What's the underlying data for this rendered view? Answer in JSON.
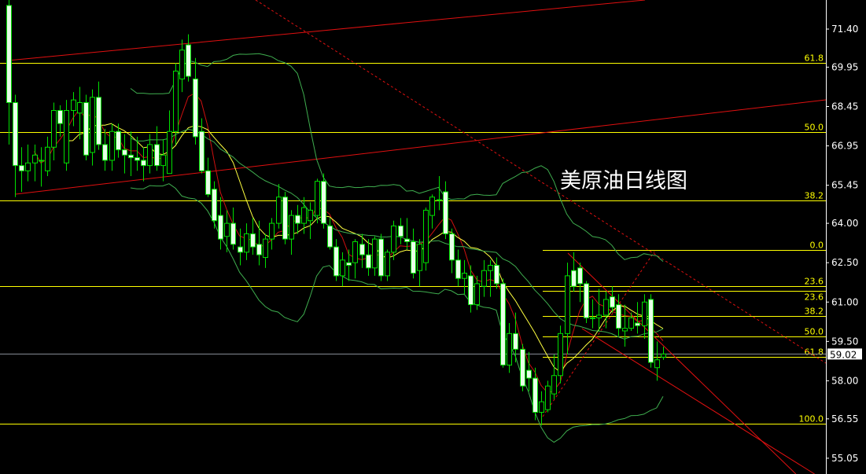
{
  "title": "美原油日线图",
  "chart_data": {
    "type": "candlestick",
    "title": "美原油日线图",
    "ylim": [
      54.6,
      72.5
    ],
    "y_ticks": [
      "71.40",
      "69.95",
      "68.45",
      "66.95",
      "65.45",
      "64.00",
      "62.50",
      "61.00",
      "59.50",
      "58.00",
      "56.55",
      "55.05"
    ],
    "current_price": "59.02",
    "candles_ohlc": [
      [
        72.3,
        72.6,
        67.0,
        68.6
      ],
      [
        68.6,
        68.9,
        65.0,
        66.2
      ],
      [
        66.2,
        66.9,
        65.2,
        66.0
      ],
      [
        66.0,
        67.0,
        65.6,
        66.3
      ],
      [
        66.3,
        67.0,
        65.6,
        66.6
      ],
      [
        66.4,
        66.9,
        65.4,
        66.4
      ],
      [
        66.0,
        67.3,
        65.8,
        66.9
      ],
      [
        66.9,
        68.6,
        66.4,
        68.3
      ],
      [
        68.3,
        68.5,
        67.3,
        67.8
      ],
      [
        66.3,
        68.7,
        66.0,
        68.3
      ],
      [
        68.3,
        69.0,
        67.7,
        68.7
      ],
      [
        68.2,
        69.2,
        67.2,
        68.6
      ],
      [
        68.6,
        68.9,
        66.4,
        66.6
      ],
      [
        66.7,
        69.1,
        66.2,
        68.8
      ],
      [
        68.8,
        69.4,
        66.8,
        67.0
      ],
      [
        67.0,
        67.6,
        66.0,
        66.4
      ],
      [
        66.4,
        67.8,
        66.0,
        67.5
      ],
      [
        67.5,
        67.8,
        66.5,
        66.8
      ],
      [
        66.8,
        67.4,
        65.9,
        66.6
      ],
      [
        66.6,
        67.5,
        65.8,
        66.5
      ],
      [
        66.5,
        67.3,
        66.0,
        66.4
      ],
      [
        66.4,
        66.9,
        65.6,
        66.2
      ],
      [
        66.2,
        67.4,
        65.9,
        67.0
      ],
      [
        67.0,
        67.7,
        66.0,
        66.2
      ],
      [
        66.2,
        67.2,
        65.6,
        66.6
      ],
      [
        65.9,
        68.3,
        65.9,
        67.5
      ],
      [
        67.5,
        70.1,
        67.0,
        69.8
      ],
      [
        69.5,
        71.0,
        69.0,
        70.6
      ],
      [
        70.8,
        71.2,
        69.4,
        69.6
      ],
      [
        69.5,
        70.3,
        67.0,
        67.3
      ],
      [
        67.5,
        68.0,
        65.9,
        66.0
      ],
      [
        66.0,
        66.5,
        65.0,
        65.1
      ],
      [
        65.3,
        65.6,
        63.8,
        64.1
      ],
      [
        64.3,
        65.0,
        63.0,
        63.4
      ],
      [
        63.5,
        64.5,
        62.9,
        64.0
      ],
      [
        64.0,
        64.6,
        63.0,
        63.2
      ],
      [
        63.1,
        63.8,
        62.4,
        62.9
      ],
      [
        62.9,
        64.0,
        62.6,
        63.6
      ],
      [
        63.6,
        64.2,
        62.8,
        63.1
      ],
      [
        63.2,
        64.1,
        62.4,
        62.8
      ],
      [
        62.7,
        63.6,
        62.3,
        63.4
      ],
      [
        63.4,
        64.2,
        63.0,
        64.0
      ],
      [
        64.0,
        65.5,
        63.8,
        65.0
      ],
      [
        65.0,
        65.2,
        63.2,
        63.4
      ],
      [
        63.4,
        64.5,
        62.8,
        64.3
      ],
      [
        64.3,
        64.7,
        63.6,
        64.0
      ],
      [
        64.0,
        65.0,
        63.6,
        64.6
      ],
      [
        64.1,
        64.8,
        63.4,
        64.5
      ],
      [
        64.3,
        65.7,
        64.0,
        65.6
      ],
      [
        65.6,
        65.9,
        63.8,
        64.0
      ],
      [
        63.9,
        64.2,
        63.0,
        63.1
      ],
      [
        63.1,
        63.4,
        61.8,
        62.0
      ],
      [
        62.0,
        62.9,
        61.6,
        62.6
      ],
      [
        62.5,
        63.0,
        61.8,
        62.4
      ],
      [
        62.5,
        63.4,
        61.9,
        63.3
      ],
      [
        63.2,
        63.6,
        62.3,
        62.8
      ],
      [
        62.8,
        63.4,
        62.0,
        62.3
      ],
      [
        62.3,
        63.5,
        62.0,
        63.4
      ],
      [
        63.4,
        63.6,
        61.8,
        62.0
      ],
      [
        62.0,
        63.0,
        61.8,
        62.9
      ],
      [
        62.9,
        64.1,
        62.6,
        63.9
      ],
      [
        63.9,
        64.2,
        63.2,
        63.5
      ],
      [
        63.4,
        64.2,
        63.0,
        63.3
      ],
      [
        63.3,
        63.8,
        61.9,
        62.1
      ],
      [
        62.2,
        63.4,
        61.6,
        63.2
      ],
      [
        62.5,
        64.6,
        62.2,
        64.5
      ],
      [
        64.3,
        65.1,
        63.8,
        65.0
      ],
      [
        64.9,
        65.8,
        64.5,
        64.9
      ],
      [
        65.2,
        65.6,
        63.4,
        63.6
      ],
      [
        63.6,
        63.8,
        62.1,
        62.6
      ],
      [
        62.6,
        63.0,
        61.6,
        61.9
      ],
      [
        61.9,
        62.6,
        61.3,
        62.1
      ],
      [
        62.0,
        62.4,
        60.6,
        60.9
      ],
      [
        60.9,
        62.0,
        60.7,
        61.7
      ],
      [
        61.6,
        62.6,
        61.2,
        62.2
      ],
      [
        62.2,
        62.6,
        61.2,
        62.4
      ],
      [
        62.4,
        62.7,
        61.5,
        61.7
      ],
      [
        61.7,
        61.9,
        58.5,
        58.6
      ],
      [
        58.6,
        60.2,
        58.3,
        59.8
      ],
      [
        59.8,
        60.6,
        58.7,
        59.2
      ],
      [
        59.2,
        59.4,
        57.6,
        57.8
      ],
      [
        58.4,
        59.1,
        57.6,
        58.1
      ],
      [
        58.1,
        58.5,
        56.5,
        56.8
      ],
      [
        56.8,
        57.6,
        56.3,
        57.2
      ],
      [
        56.9,
        58.0,
        56.8,
        57.8
      ],
      [
        57.5,
        59.0,
        57.3,
        58.2
      ],
      [
        58.2,
        60.1,
        57.9,
        59.8
      ],
      [
        59.8,
        62.5,
        59.0,
        62.0
      ],
      [
        62.2,
        62.9,
        61.4,
        61.6
      ],
      [
        62.3,
        62.5,
        61.0,
        61.7
      ],
      [
        61.7,
        61.8,
        60.2,
        60.4
      ],
      [
        60.4,
        61.1,
        60.0,
        60.4
      ],
      [
        60.4,
        61.5,
        59.9,
        60.5
      ],
      [
        60.5,
        61.4,
        60.0,
        61.1
      ],
      [
        61.2,
        61.6,
        60.6,
        60.8
      ],
      [
        60.9,
        61.3,
        59.7,
        60.0
      ],
      [
        59.9,
        60.9,
        59.3,
        60.0
      ],
      [
        60.0,
        60.6,
        59.9,
        60.4
      ],
      [
        60.2,
        61.0,
        59.8,
        60.1
      ],
      [
        60.1,
        61.3,
        59.6,
        61.0
      ],
      [
        61.1,
        61.3,
        58.5,
        58.7
      ],
      [
        58.5,
        59.5,
        58.0,
        58.8
      ],
      [
        58.9,
        59.3,
        58.8,
        59.02
      ]
    ],
    "fib_levels": [
      {
        "label": "61.8",
        "price": 70.11,
        "full": true
      },
      {
        "label": "50.0",
        "price": 67.48,
        "full": true
      },
      {
        "label": "38.2",
        "price": 64.87,
        "full": true
      },
      {
        "label": "0.0",
        "price": 62.99,
        "full": false
      },
      {
        "label": "23.6",
        "price": 61.61,
        "full": true
      },
      {
        "label": "23.6",
        "price": 61.43,
        "full": false
      },
      {
        "label": "38.2",
        "price": 60.47,
        "full": false
      },
      {
        "label": "50.0",
        "price": 59.69,
        "full": false
      },
      {
        "label": "61.8",
        "price": 58.91,
        "full": false
      },
      {
        "label": "100.0",
        "price": 56.37,
        "full": true
      }
    ],
    "indicators": [
      {
        "type": "sma",
        "period": 5,
        "color": "#d01010"
      },
      {
        "type": "sma",
        "period": 10,
        "color": "#ffff40"
      },
      {
        "type": "bollinger",
        "period": 20,
        "color": "#3fae4f"
      }
    ],
    "colors": {
      "background": "#000000",
      "bull_body": "#000000",
      "bear_body": "#e8ffe8",
      "candle_outline": "#00e000",
      "fib": "#ffff00",
      "trendline": "#e01010",
      "current_price_line": "#8a8f99",
      "axis": "#ffffff"
    }
  }
}
